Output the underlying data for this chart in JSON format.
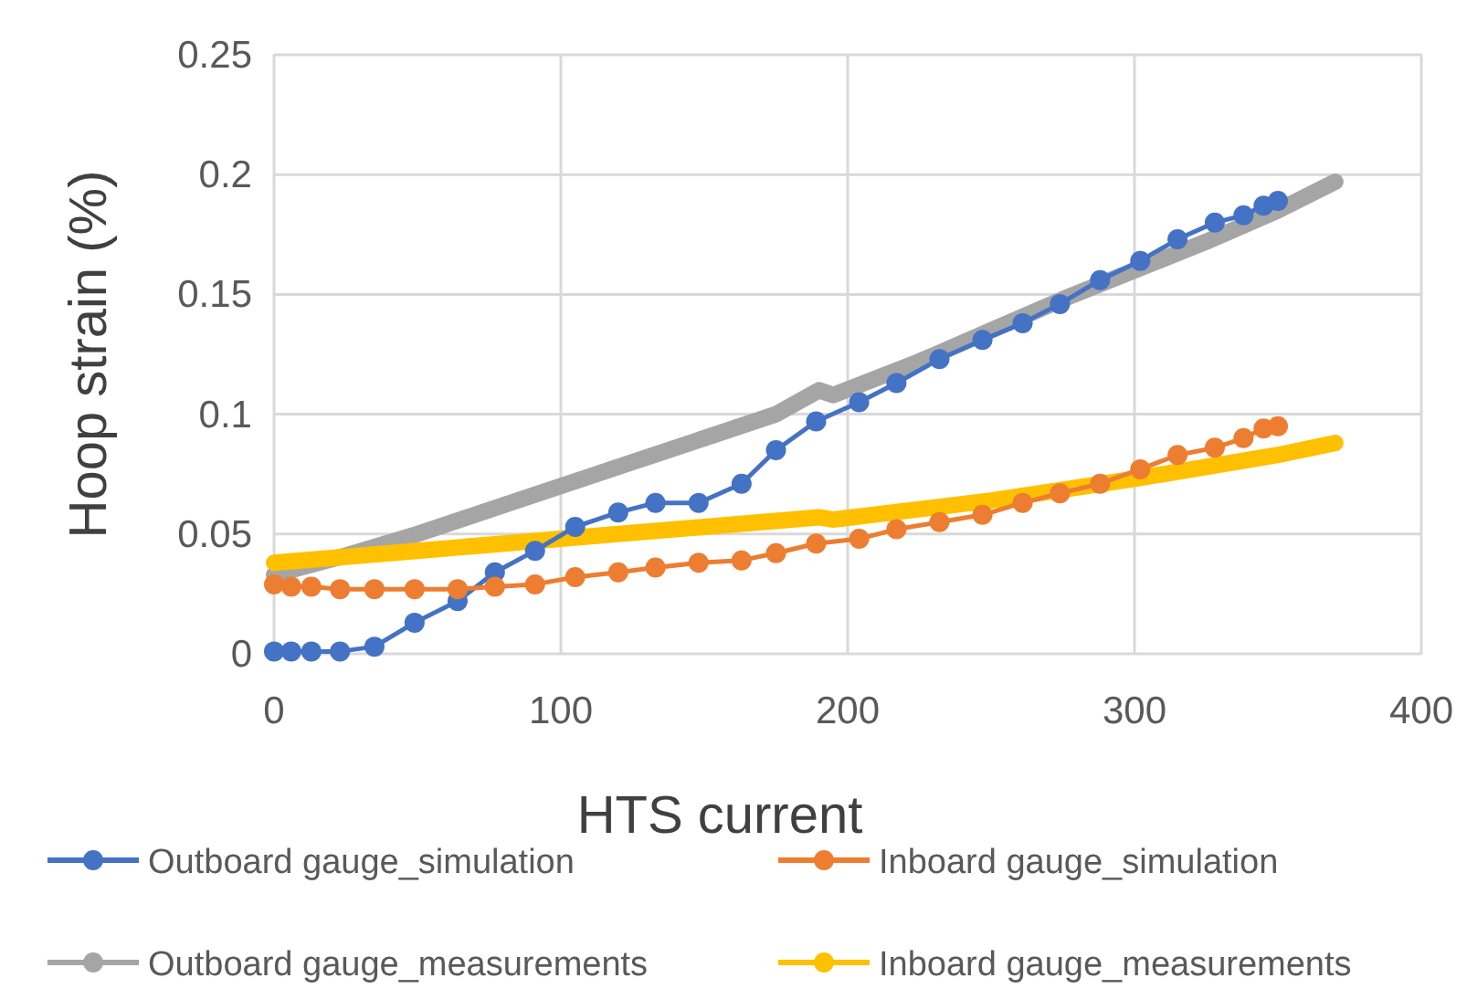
{
  "chart_data": {
    "type": "line",
    "xlabel": "HTS current",
    "ylabel": "Hoop strain (%)",
    "xlim": [
      0,
      400
    ],
    "xticks": [
      0,
      100,
      200,
      300,
      400
    ],
    "ylim": [
      0,
      0.25
    ],
    "yticks": [
      0,
      0.05,
      0.1,
      0.15,
      0.2,
      0.25
    ],
    "grid": true,
    "legend": "bottom",
    "series": [
      {
        "name": "Outboard gauge_simulation",
        "color": "#4472c4",
        "marker": "circle",
        "x": [
          0,
          6,
          13,
          23,
          35,
          49,
          64,
          77,
          91,
          105,
          120,
          133,
          148,
          163,
          175,
          189,
          204,
          217,
          232,
          247,
          261,
          274,
          288,
          302,
          315,
          328,
          338,
          345,
          350
        ],
        "values": [
          0.001,
          0.001,
          0.001,
          0.001,
          0.003,
          0.013,
          0.022,
          0.034,
          0.043,
          0.053,
          0.059,
          0.063,
          0.063,
          0.071,
          0.085,
          0.097,
          0.105,
          0.113,
          0.123,
          0.131,
          0.138,
          0.146,
          0.156,
          0.164,
          0.173,
          0.18,
          0.183,
          0.187,
          0.189
        ]
      },
      {
        "name": "Inboard gauge_simulation",
        "color": "#ed7d31",
        "marker": "circle",
        "x": [
          0,
          6,
          13,
          23,
          35,
          49,
          64,
          77,
          91,
          105,
          120,
          133,
          148,
          163,
          175,
          189,
          204,
          217,
          232,
          247,
          261,
          274,
          288,
          302,
          315,
          328,
          338,
          345,
          350
        ],
        "values": [
          0.029,
          0.028,
          0.028,
          0.027,
          0.027,
          0.027,
          0.027,
          0.028,
          0.029,
          0.032,
          0.034,
          0.036,
          0.038,
          0.039,
          0.042,
          0.046,
          0.048,
          0.052,
          0.055,
          0.058,
          0.063,
          0.067,
          0.071,
          0.077,
          0.083,
          0.086,
          0.09,
          0.094,
          0.095
        ]
      },
      {
        "name": "Outboard gauge_measurements",
        "color": "#a5a5a5",
        "marker": "none",
        "x": [
          0,
          25,
          50,
          75,
          100,
          125,
          150,
          175,
          190,
          195,
          225,
          250,
          275,
          300,
          325,
          350,
          370
        ],
        "values": [
          0.033,
          0.041,
          0.05,
          0.06,
          0.07,
          0.08,
          0.09,
          0.1,
          0.11,
          0.108,
          0.122,
          0.135,
          0.148,
          0.16,
          0.172,
          0.185,
          0.197
        ]
      },
      {
        "name": "Inboard gauge_measurements",
        "color": "#ffc000",
        "marker": "none",
        "x": [
          0,
          50,
          100,
          150,
          190,
          195,
          250,
          300,
          350,
          370
        ],
        "values": [
          0.038,
          0.043,
          0.048,
          0.053,
          0.057,
          0.056,
          0.064,
          0.073,
          0.083,
          0.088
        ]
      }
    ]
  }
}
